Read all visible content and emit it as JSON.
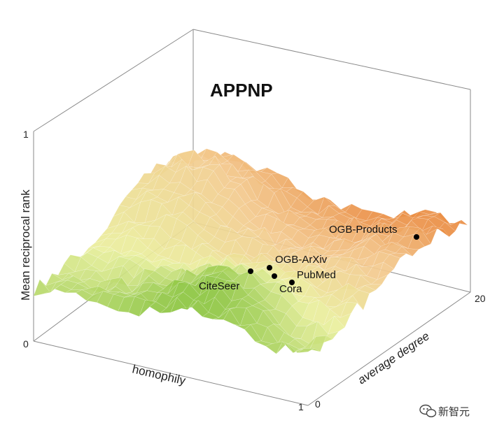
{
  "chart_data": {
    "type": "surface",
    "title": "APPNP",
    "xlabel": "homophily",
    "ylabel": "average degree",
    "zlabel": "Mean reciprocal rank",
    "xlim": [
      0,
      1
    ],
    "ylim": [
      0,
      20
    ],
    "zlim": [
      0,
      1
    ],
    "ticks": {
      "x_max": "1",
      "y_min": "0",
      "y_max": "20",
      "z_min": "0",
      "z_max": "1"
    },
    "colormap": [
      "#8cc540",
      "#e9ef9c",
      "#f3c98d",
      "#ea8f45"
    ],
    "points": [
      {
        "name": "OGB-Products",
        "homophily": 0.81,
        "average_degree": 19.0,
        "mrr": 0.45
      },
      {
        "name": "OGB-ArXiv",
        "homophily": 0.65,
        "average_degree": 7.6,
        "mrr": 0.4
      },
      {
        "name": "PubMed",
        "homophily": 0.8,
        "average_degree": 4.5,
        "mrr": 0.39
      },
      {
        "name": "Cora",
        "homophily": 0.81,
        "average_degree": 3.9,
        "mrr": 0.37
      },
      {
        "name": "CiteSeer",
        "homophily": 0.74,
        "average_degree": 2.7,
        "mrr": 0.34
      }
    ]
  },
  "watermark": {
    "text": "新智元",
    "icon": "wechat-icon"
  }
}
